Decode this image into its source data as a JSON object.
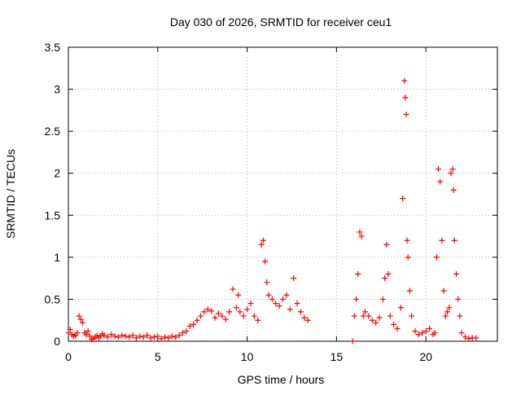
{
  "chart_data": {
    "type": "scatter",
    "title": "Day 030 of 2026, SRMTID for receiver ceu1",
    "xlabel": "GPS time / hours",
    "ylabel": "SRMTID / TECUs",
    "xlim": [
      0,
      24.0
    ],
    "ylim": [
      0,
      3.5
    ],
    "xticks": [
      0,
      5,
      10,
      15,
      20
    ],
    "xtick_labels": [
      "0",
      "5",
      "10",
      "15",
      "20"
    ],
    "yticks": [
      0,
      0.5,
      1,
      1.5,
      2,
      2.5,
      3,
      3.5
    ],
    "ytick_labels": [
      "0",
      "0.5",
      "1",
      "1.5",
      "2",
      "2.5",
      "3",
      "3.5"
    ],
    "grid": true,
    "marker": "+",
    "point_color": "#ff0000",
    "series": [
      {
        "name": "SRMTID",
        "x": [
          0.0,
          0.1,
          0.2,
          0.3,
          0.4,
          0.5,
          0.6,
          0.7,
          0.8,
          0.9,
          1.0,
          1.1,
          1.2,
          1.3,
          1.4,
          1.5,
          1.6,
          1.7,
          1.8,
          1.9,
          2.0,
          2.2,
          2.4,
          2.6,
          2.8,
          3.0,
          3.2,
          3.4,
          3.6,
          3.8,
          4.0,
          4.2,
          4.4,
          4.6,
          4.8,
          5.0,
          5.2,
          5.4,
          5.6,
          5.8,
          6.0,
          6.2,
          6.4,
          6.6,
          6.8,
          7.0,
          7.2,
          7.4,
          7.6,
          7.8,
          8.0,
          8.2,
          8.4,
          8.6,
          8.8,
          9.0,
          9.2,
          9.4,
          9.5,
          9.6,
          9.8,
          10.0,
          10.2,
          10.4,
          10.6,
          10.8,
          10.9,
          11.0,
          11.1,
          11.2,
          11.4,
          11.6,
          11.8,
          12.0,
          12.2,
          12.4,
          12.6,
          12.8,
          13.0,
          13.2,
          13.4,
          15.9,
          16.0,
          16.1,
          16.2,
          16.3,
          16.4,
          16.5,
          16.6,
          16.8,
          17.0,
          17.2,
          17.4,
          17.6,
          17.7,
          17.8,
          17.9,
          18.0,
          18.2,
          18.4,
          18.6,
          18.7,
          18.8,
          18.85,
          18.9,
          18.95,
          19.0,
          19.1,
          19.2,
          19.4,
          19.6,
          19.8,
          20.0,
          20.2,
          20.4,
          20.5,
          20.6,
          20.7,
          20.8,
          20.9,
          21.0,
          21.1,
          21.2,
          21.3,
          21.4,
          21.5,
          21.55,
          21.6,
          21.7,
          21.8,
          21.9,
          22.0,
          22.2,
          22.4,
          22.6,
          22.8
        ],
        "y": [
          0.1,
          0.14,
          0.08,
          0.06,
          0.07,
          0.1,
          0.3,
          0.26,
          0.22,
          0.1,
          0.08,
          0.12,
          0.06,
          0.02,
          0.03,
          0.05,
          0.07,
          0.04,
          0.06,
          0.09,
          0.07,
          0.05,
          0.08,
          0.06,
          0.05,
          0.07,
          0.06,
          0.05,
          0.07,
          0.04,
          0.06,
          0.05,
          0.07,
          0.04,
          0.05,
          0.06,
          0.03,
          0.05,
          0.04,
          0.06,
          0.05,
          0.07,
          0.1,
          0.12,
          0.18,
          0.2,
          0.25,
          0.3,
          0.35,
          0.38,
          0.36,
          0.28,
          0.33,
          0.3,
          0.26,
          0.35,
          0.62,
          0.4,
          0.55,
          0.35,
          0.3,
          0.38,
          0.45,
          0.3,
          0.25,
          1.15,
          1.2,
          0.95,
          0.7,
          0.55,
          0.5,
          0.45,
          0.42,
          0.5,
          0.55,
          0.38,
          0.75,
          0.45,
          0.35,
          0.28,
          0.25,
          0.0,
          0.3,
          0.5,
          0.8,
          1.3,
          1.25,
          0.3,
          0.35,
          0.3,
          0.25,
          0.22,
          0.28,
          0.5,
          0.75,
          1.15,
          0.8,
          0.3,
          0.2,
          0.15,
          0.4,
          1.7,
          3.1,
          2.9,
          2.7,
          1.2,
          1.0,
          0.6,
          0.3,
          0.12,
          0.08,
          0.1,
          0.12,
          0.15,
          0.08,
          0.1,
          1.0,
          2.05,
          1.9,
          1.2,
          0.6,
          0.3,
          0.35,
          0.4,
          2.0,
          2.05,
          1.8,
          1.2,
          0.8,
          0.5,
          0.3,
          0.1,
          0.05,
          0.03,
          0.04,
          0.04
        ]
      }
    ]
  }
}
